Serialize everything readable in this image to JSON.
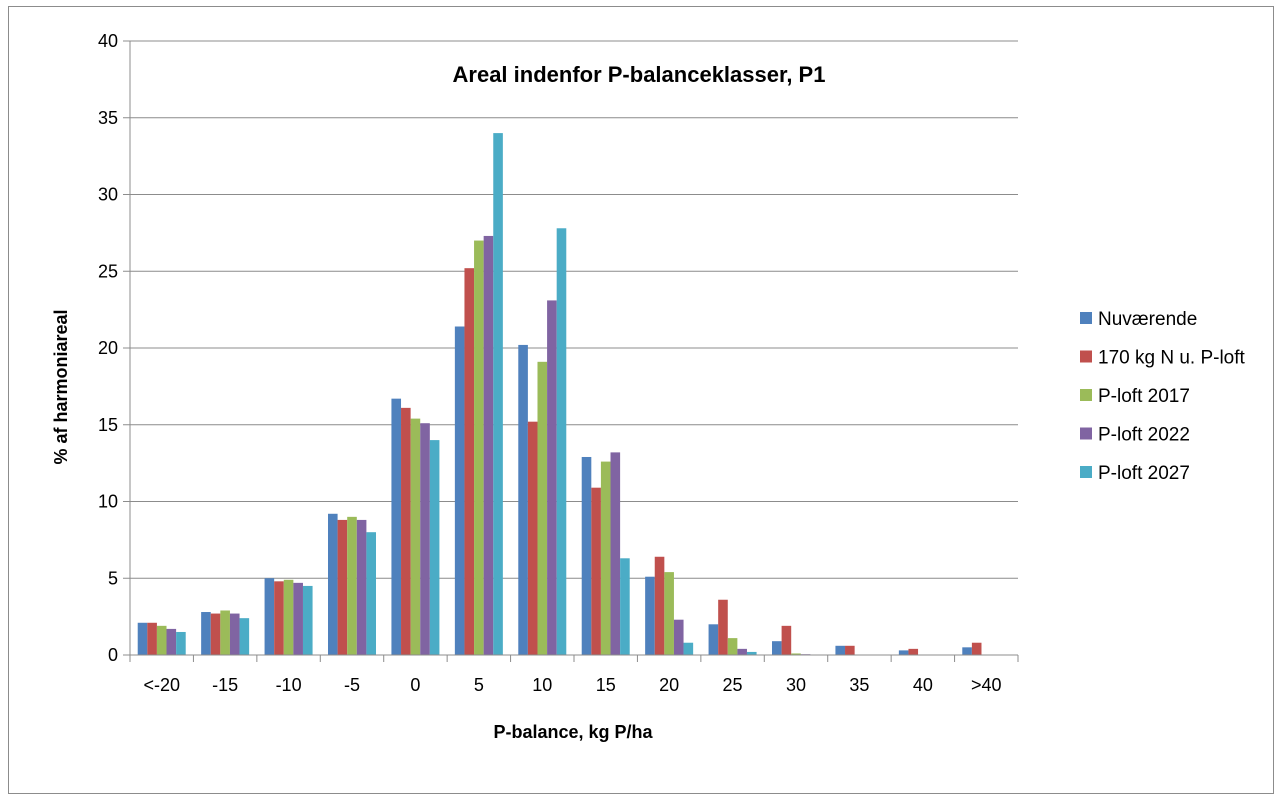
{
  "chart_data": {
    "type": "bar",
    "title": "Areal indenfor P-balanceklasser, P1",
    "xlabel": "P-balance, kg P/ha",
    "ylabel": "% af harmoniareal",
    "ylim": [
      0,
      40
    ],
    "yticks": [
      0,
      5,
      10,
      15,
      20,
      25,
      30,
      35,
      40
    ],
    "grid": true,
    "legend_position": "right",
    "categories": [
      "<-20",
      "-15",
      "-10",
      "-5",
      "0",
      "5",
      "10",
      "15",
      "20",
      "25",
      "30",
      "35",
      "40",
      ">40"
    ],
    "series": [
      {
        "name": "Nuværende",
        "color": "#4F81BD",
        "values": [
          2.1,
          2.8,
          5.0,
          9.2,
          16.7,
          21.4,
          20.2,
          12.9,
          5.1,
          2.0,
          0.9,
          0.6,
          0.3,
          0.5
        ]
      },
      {
        "name": "170 kg N u. P-loft",
        "color": "#C0504D",
        "values": [
          2.1,
          2.7,
          4.8,
          8.8,
          16.1,
          25.2,
          15.2,
          10.9,
          6.4,
          3.6,
          1.9,
          0.6,
          0.4,
          0.8
        ]
      },
      {
        "name": "P-loft 2017",
        "color": "#9BBB59",
        "values": [
          1.9,
          2.9,
          4.9,
          9.0,
          15.4,
          27.0,
          19.1,
          12.6,
          5.4,
          1.1,
          0.1,
          0.0,
          0.0,
          0.0
        ]
      },
      {
        "name": "P-loft 2022",
        "color": "#8064A2",
        "values": [
          1.7,
          2.7,
          4.7,
          8.8,
          15.1,
          27.3,
          23.1,
          13.2,
          2.3,
          0.4,
          0.05,
          0.0,
          0.0,
          0.0
        ]
      },
      {
        "name": "P-loft 2027",
        "color": "#4BACC6",
        "values": [
          1.5,
          2.4,
          4.5,
          8.0,
          14.0,
          34.0,
          27.8,
          6.3,
          0.8,
          0.2,
          0.02,
          0.0,
          0.0,
          0.0
        ]
      }
    ]
  }
}
